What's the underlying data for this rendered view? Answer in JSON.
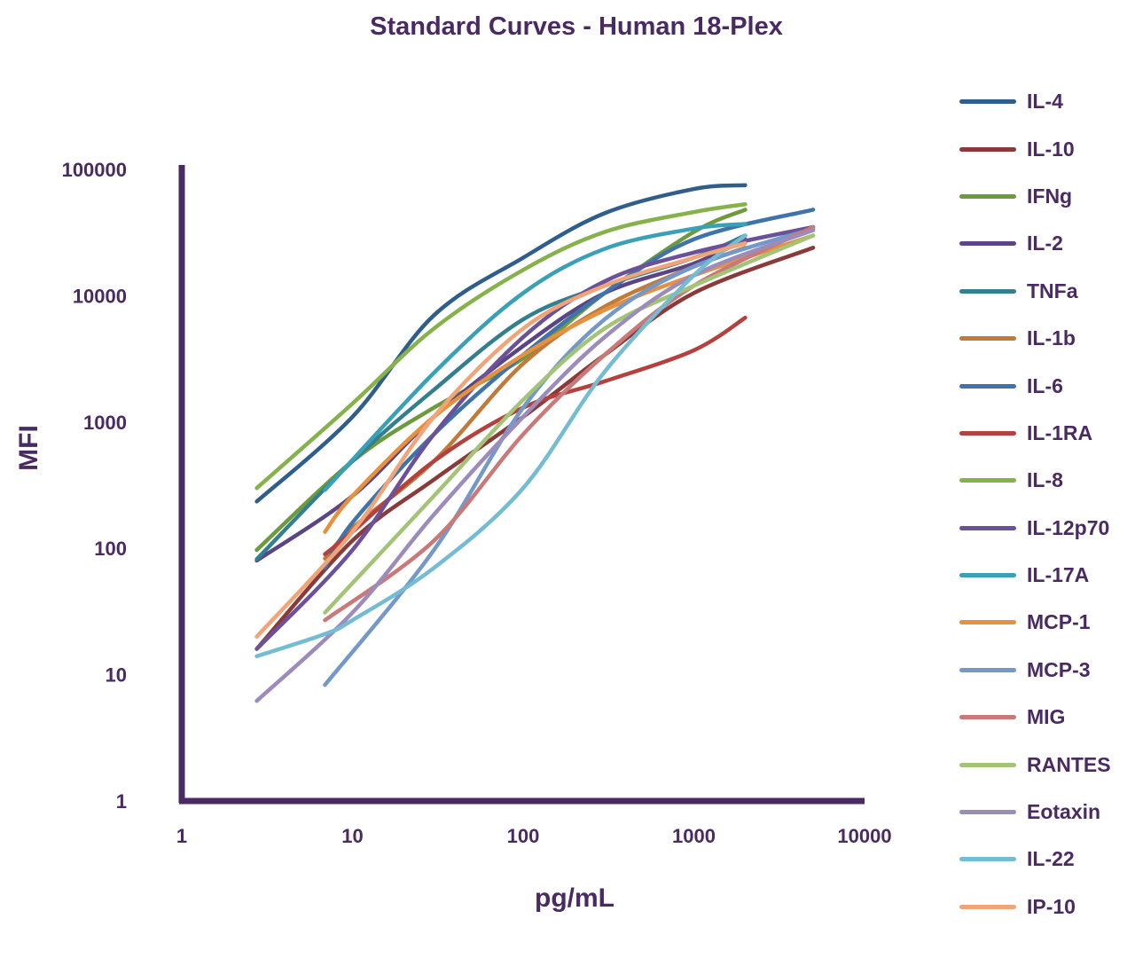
{
  "chart_data": {
    "type": "line",
    "title": "Standard Curves - Human 18-Plex",
    "xlabel": "pg/mL",
    "ylabel": "MFI",
    "x_scale": "log",
    "y_scale": "log",
    "xlim": [
      1,
      10000
    ],
    "ylim": [
      1,
      100000
    ],
    "x_ticks": [
      "1",
      "10",
      "100",
      "1000",
      "10000"
    ],
    "y_ticks": [
      "1",
      "10",
      "100",
      "1000",
      "10000",
      "100000"
    ],
    "grid": false,
    "legend_position": "right",
    "series": [
      {
        "name": "IL-4",
        "color": "#2f5e8c",
        "points": [
          [
            2.75,
            235
          ],
          [
            10,
            1100
          ],
          [
            30,
            7000
          ],
          [
            100,
            20000
          ],
          [
            300,
            45000
          ],
          [
            1000,
            70000
          ],
          [
            2000,
            75000
          ]
        ]
      },
      {
        "name": "IL-10",
        "color": "#8b3a3a",
        "points": [
          [
            2.75,
            16
          ],
          [
            10,
            115
          ],
          [
            30,
            350
          ],
          [
            100,
            1100
          ],
          [
            300,
            3400
          ],
          [
            1000,
            10500
          ],
          [
            5000,
            24000
          ]
        ]
      },
      {
        "name": "IFNg",
        "color": "#6e9a3e",
        "points": [
          [
            2.75,
            97
          ],
          [
            10,
            490
          ],
          [
            30,
            1300
          ],
          [
            100,
            3200
          ],
          [
            300,
            10500
          ],
          [
            1000,
            32000
          ],
          [
            2000,
            48000
          ]
        ]
      },
      {
        "name": "IL-2",
        "color": "#5a4684",
        "points": [
          [
            2.75,
            80
          ],
          [
            10,
            260
          ],
          [
            30,
            1100
          ],
          [
            100,
            4000
          ],
          [
            300,
            10500
          ],
          [
            1000,
            18000
          ],
          [
            2000,
            28000
          ]
        ]
      },
      {
        "name": "TNFa",
        "color": "#337f8f",
        "points": [
          [
            2.75,
            82
          ],
          [
            10,
            490
          ],
          [
            30,
            1800
          ],
          [
            100,
            6500
          ],
          [
            300,
            12000
          ],
          [
            1000,
            20000
          ],
          [
            2000,
            30000
          ]
        ]
      },
      {
        "name": "IL-1b",
        "color": "#c07a3a",
        "points": [
          [
            6.9,
            83
          ],
          [
            10,
            145
          ],
          [
            30,
            490
          ],
          [
            100,
            2900
          ],
          [
            300,
            8200
          ],
          [
            1000,
            17000
          ],
          [
            2000,
            24000
          ]
        ]
      },
      {
        "name": "IL-6",
        "color": "#3f74aa",
        "points": [
          [
            6.9,
            70
          ],
          [
            10,
            160
          ],
          [
            30,
            800
          ],
          [
            100,
            3400
          ],
          [
            300,
            10500
          ],
          [
            1000,
            28000
          ],
          [
            5000,
            48000
          ]
        ]
      },
      {
        "name": "IL-1RA",
        "color": "#b4413e",
        "points": [
          [
            6.9,
            90
          ],
          [
            10,
            135
          ],
          [
            30,
            490
          ],
          [
            100,
            1300
          ],
          [
            300,
            2100
          ],
          [
            1000,
            3700
          ],
          [
            2000,
            6700
          ]
        ]
      },
      {
        "name": "IL-8",
        "color": "#85b24a",
        "points": [
          [
            2.75,
            300
          ],
          [
            10,
            1400
          ],
          [
            30,
            5500
          ],
          [
            100,
            16000
          ],
          [
            300,
            32000
          ],
          [
            1000,
            46000
          ],
          [
            2000,
            53000
          ]
        ]
      },
      {
        "name": "IL-12p70",
        "color": "#6a519a",
        "points": [
          [
            2.75,
            16
          ],
          [
            10,
            97
          ],
          [
            30,
            800
          ],
          [
            100,
            4700
          ],
          [
            300,
            13000
          ],
          [
            1000,
            22000
          ],
          [
            5000,
            35000
          ]
        ]
      },
      {
        "name": "IL-17A",
        "color": "#3aa0b8",
        "points": [
          [
            6.9,
            290
          ],
          [
            30,
            2450
          ],
          [
            100,
            10500
          ],
          [
            300,
            23500
          ],
          [
            1000,
            34000
          ],
          [
            2000,
            37000
          ]
        ]
      },
      {
        "name": "MCP-1",
        "color": "#e5913f",
        "points": [
          [
            6.9,
            135
          ],
          [
            10,
            260
          ],
          [
            30,
            1100
          ],
          [
            100,
            3400
          ],
          [
            300,
            7700
          ],
          [
            1000,
            14500
          ],
          [
            5000,
            30000
          ]
        ]
      },
      {
        "name": "MCP-3",
        "color": "#7499c8",
        "points": [
          [
            6.9,
            8.3
          ],
          [
            30,
            97
          ],
          [
            100,
            1300
          ],
          [
            300,
            6500
          ],
          [
            1000,
            17000
          ],
          [
            5000,
            34000
          ]
        ]
      },
      {
        "name": "MIG",
        "color": "#c97a78",
        "points": [
          [
            6.9,
            27
          ],
          [
            30,
            115
          ],
          [
            100,
            800
          ],
          [
            300,
            3400
          ],
          [
            1000,
            12000
          ],
          [
            5000,
            35000
          ]
        ]
      },
      {
        "name": "RANTES",
        "color": "#a3c476",
        "points": [
          [
            6.9,
            31
          ],
          [
            30,
            260
          ],
          [
            100,
            1500
          ],
          [
            300,
            5500
          ],
          [
            1000,
            12000
          ],
          [
            5000,
            30000
          ]
        ]
      },
      {
        "name": "Eotaxin",
        "color": "#9c8cbc",
        "points": [
          [
            2.75,
            6.2
          ],
          [
            10,
            31
          ],
          [
            30,
            185
          ],
          [
            100,
            1100
          ],
          [
            300,
            4700
          ],
          [
            1000,
            14500
          ],
          [
            5000,
            33000
          ]
        ]
      },
      {
        "name": "IL-22",
        "color": "#74bcd4",
        "points": [
          [
            2.75,
            14
          ],
          [
            6.9,
            21
          ],
          [
            10,
            27
          ],
          [
            30,
            70
          ],
          [
            100,
            300
          ],
          [
            300,
            2500
          ],
          [
            1000,
            14500
          ],
          [
            2000,
            30000
          ]
        ]
      },
      {
        "name": "IP-10",
        "color": "#f0a478",
        "points": [
          [
            2.75,
            20
          ],
          [
            10,
            135
          ],
          [
            30,
            1100
          ],
          [
            100,
            5500
          ],
          [
            300,
            12000
          ],
          [
            1000,
            20000
          ],
          [
            2000,
            26000
          ]
        ]
      }
    ]
  }
}
